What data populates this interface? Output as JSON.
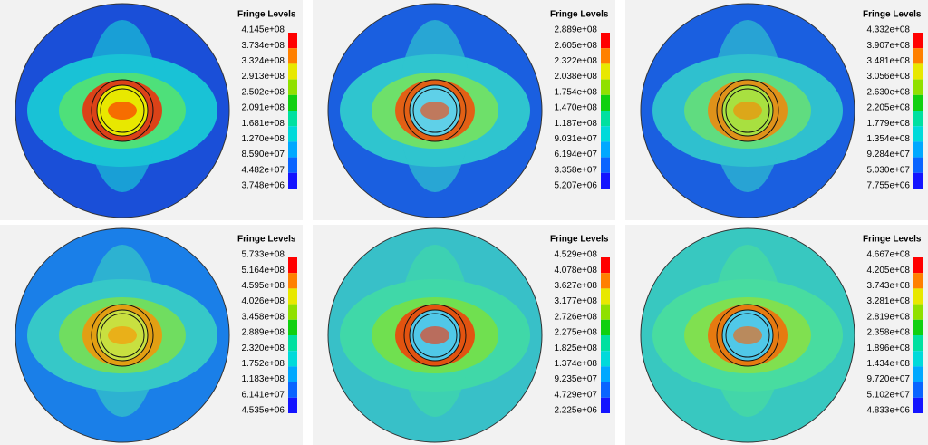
{
  "panels": [
    {
      "title": "Fringe Levels",
      "levels": [
        "4.145e+08",
        "3.734e+08",
        "3.324e+08",
        "2.913e+08",
        "2.502e+08",
        "2.091e+08",
        "1.681e+08",
        "1.270e+08",
        "8.590e+07",
        "4.482e+07",
        "3.748e+06"
      ]
    },
    {
      "title": "Fringe Levels",
      "levels": [
        "2.889e+08",
        "2.605e+08",
        "2.322e+08",
        "2.038e+08",
        "1.754e+08",
        "1.470e+08",
        "1.187e+08",
        "9.031e+07",
        "6.194e+07",
        "3.358e+07",
        "5.207e+06"
      ]
    },
    {
      "title": "Fringe Levels",
      "levels": [
        "4.332e+08",
        "3.907e+08",
        "3.481e+08",
        "3.056e+08",
        "2.630e+08",
        "2.205e+08",
        "1.779e+08",
        "1.354e+08",
        "9.284e+07",
        "5.030e+07",
        "7.755e+06"
      ]
    },
    {
      "title": "Fringe Levels",
      "levels": [
        "5.733e+08",
        "5.164e+08",
        "4.595e+08",
        "4.026e+08",
        "3.458e+08",
        "2.889e+08",
        "2.320e+08",
        "1.752e+08",
        "1.183e+08",
        "6.141e+07",
        "4.535e+06"
      ]
    },
    {
      "title": "Fringe Levels",
      "levels": [
        "4.529e+08",
        "4.078e+08",
        "3.627e+08",
        "3.177e+08",
        "2.726e+08",
        "2.275e+08",
        "1.825e+08",
        "1.374e+08",
        "9.235e+07",
        "4.729e+07",
        "2.225e+06"
      ]
    },
    {
      "title": "Fringe Levels",
      "levels": [
        "4.667e+08",
        "4.205e+08",
        "3.743e+08",
        "3.281e+08",
        "2.819e+08",
        "2.358e+08",
        "1.896e+08",
        "1.434e+08",
        "9.720e+07",
        "5.102e+07",
        "4.833e+06"
      ]
    }
  ]
}
